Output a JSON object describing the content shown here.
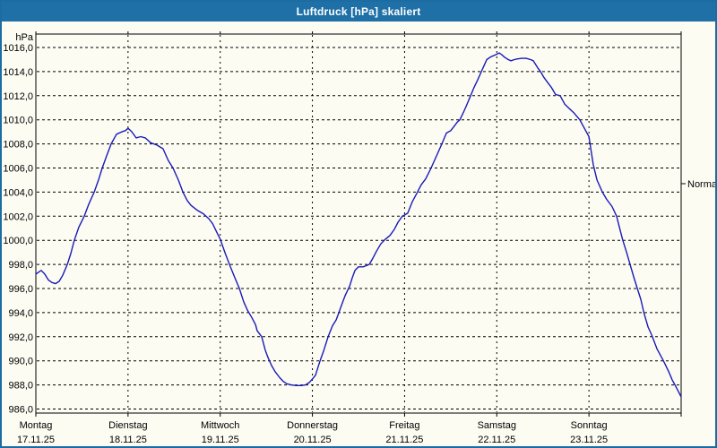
{
  "window": {
    "title": "Luftdruck [hPa] skaliert"
  },
  "chart_data": {
    "type": "line",
    "title": "Luftdruck [hPa] skaliert",
    "unit_label": "hPa",
    "ylim": [
      985.5,
      1017.1
    ],
    "yticks": [
      1016,
      1014,
      1012,
      1010,
      1008,
      1006,
      1004,
      1002,
      1000,
      998,
      996,
      994,
      992,
      990,
      988,
      986
    ],
    "ytick_decimal": "comma",
    "x_hours_range": [
      0,
      168
    ],
    "grid": "dashed",
    "x_categories": [
      {
        "day": "Montag",
        "date": "17.11.25"
      },
      {
        "day": "Dienstag",
        "date": "18.11.25"
      },
      {
        "day": "Mittwoch",
        "date": "19.11.25"
      },
      {
        "day": "Donnerstag",
        "date": "20.11.25"
      },
      {
        "day": "Freitag",
        "date": "21.11.25"
      },
      {
        "day": "Samstag",
        "date": "22.11.25"
      },
      {
        "day": "Sonntag",
        "date": "23.11.25"
      }
    ],
    "annotations": [
      {
        "label": "Normal",
        "value_hpa": 1004.7,
        "position": "right-edge"
      }
    ],
    "series": [
      {
        "name": "Luftdruck",
        "color": "#1a1ab8",
        "points_hours_hpa": [
          [
            0,
            997.2
          ],
          [
            0.9,
            997.4
          ],
          [
            1.4,
            997.5
          ],
          [
            2.3,
            997.2
          ],
          [
            3.3,
            996.7
          ],
          [
            4.2,
            996.5
          ],
          [
            5.1,
            996.4
          ],
          [
            6.1,
            996.6
          ],
          [
            7,
            997.1
          ],
          [
            8.2,
            998
          ],
          [
            9.1,
            998.9
          ],
          [
            10,
            1000
          ],
          [
            11.2,
            1001.1
          ],
          [
            12.6,
            1002
          ],
          [
            13.8,
            1003
          ],
          [
            15.2,
            1004
          ],
          [
            16.3,
            1005
          ],
          [
            17.3,
            1006
          ],
          [
            18.4,
            1007
          ],
          [
            19.6,
            1008
          ],
          [
            21,
            1008.8
          ],
          [
            22.4,
            1009
          ],
          [
            23.3,
            1009.1
          ],
          [
            24,
            1009.3
          ],
          [
            25,
            1009
          ],
          [
            26.1,
            1008.5
          ],
          [
            27.3,
            1008.6
          ],
          [
            28.5,
            1008.5
          ],
          [
            29.9,
            1008.1
          ],
          [
            31.5,
            1007.9
          ],
          [
            33.1,
            1007.6
          ],
          [
            34.5,
            1006.6
          ],
          [
            35.7,
            1006
          ],
          [
            37.1,
            1005
          ],
          [
            38.3,
            1004
          ],
          [
            39.4,
            1003.3
          ],
          [
            40.4,
            1002.9
          ],
          [
            42,
            1002.5
          ],
          [
            43.6,
            1002.2
          ],
          [
            45,
            1001.8
          ],
          [
            46,
            1001.4
          ],
          [
            46.9,
            1000.8
          ],
          [
            48,
            1000.1
          ],
          [
            49.2,
            999
          ],
          [
            50.4,
            998
          ],
          [
            51.8,
            996.9
          ],
          [
            53,
            996
          ],
          [
            54.1,
            994.9
          ],
          [
            55.1,
            994.2
          ],
          [
            56.2,
            993.6
          ],
          [
            57.2,
            993
          ],
          [
            57.6,
            992.5
          ],
          [
            58.8,
            992
          ],
          [
            59.7,
            990.9
          ],
          [
            60.4,
            990.3
          ],
          [
            61.4,
            989.6
          ],
          [
            62.3,
            989.1
          ],
          [
            63.5,
            988.6
          ],
          [
            64.4,
            988.3
          ],
          [
            65.3,
            988.1
          ],
          [
            66.5,
            988
          ],
          [
            67.7,
            987.95
          ],
          [
            69.1,
            987.95
          ],
          [
            70.2,
            988
          ],
          [
            71.2,
            988.2
          ],
          [
            72,
            988.5
          ],
          [
            72.8,
            988.8
          ],
          [
            74,
            990
          ],
          [
            74.9,
            990.8
          ],
          [
            76.1,
            992
          ],
          [
            77.2,
            992.9
          ],
          [
            78.2,
            993.4
          ],
          [
            78.9,
            994
          ],
          [
            79.8,
            994.8
          ],
          [
            80.5,
            995.4
          ],
          [
            81.7,
            996.2
          ],
          [
            82.4,
            996.9
          ],
          [
            83.1,
            997.5
          ],
          [
            84,
            997.8
          ],
          [
            85.2,
            997.8
          ],
          [
            86.1,
            997.9
          ],
          [
            86.8,
            998
          ],
          [
            87.7,
            998.5
          ],
          [
            88.7,
            999.1
          ],
          [
            89.8,
            999.7
          ],
          [
            91,
            1000.1
          ],
          [
            92.2,
            1000.4
          ],
          [
            93.3,
            1000.9
          ],
          [
            94.3,
            1001.5
          ],
          [
            95.4,
            1002
          ],
          [
            96,
            1002.1
          ],
          [
            96.8,
            1002.25
          ],
          [
            98,
            1003.2
          ],
          [
            99.2,
            1003.9
          ],
          [
            100.3,
            1004.6
          ],
          [
            101.5,
            1005.1
          ],
          [
            102.9,
            1006
          ],
          [
            104.3,
            1007
          ],
          [
            105.7,
            1008
          ],
          [
            106.9,
            1008.9
          ],
          [
            108,
            1009.1
          ],
          [
            109,
            1009.5
          ],
          [
            109.7,
            1009.8
          ],
          [
            110.4,
            1010
          ],
          [
            111.3,
            1010.6
          ],
          [
            112,
            1011.1
          ],
          [
            113.2,
            1012
          ],
          [
            114.1,
            1012.7
          ],
          [
            115,
            1013.3
          ],
          [
            116,
            1014
          ],
          [
            116.7,
            1014.5
          ],
          [
            117.4,
            1015
          ],
          [
            118.3,
            1015.2
          ],
          [
            119,
            1015.3
          ],
          [
            119.7,
            1015.4
          ],
          [
            120.6,
            1015.55
          ],
          [
            121.3,
            1015.4
          ],
          [
            122,
            1015.2
          ],
          [
            123,
            1015
          ],
          [
            123.7,
            1014.9
          ],
          [
            124.6,
            1015
          ],
          [
            125.3,
            1015.05
          ],
          [
            126.5,
            1015.1
          ],
          [
            127.6,
            1015.1
          ],
          [
            128.8,
            1015
          ],
          [
            129.5,
            1014.9
          ],
          [
            130.7,
            1014.3
          ],
          [
            131.4,
            1014
          ],
          [
            132.3,
            1013.5
          ],
          [
            133,
            1013.2
          ],
          [
            134.2,
            1012.7
          ],
          [
            135.3,
            1012.1
          ],
          [
            136.5,
            1012
          ],
          [
            137.7,
            1011.3
          ],
          [
            138.8,
            1010.95
          ],
          [
            140,
            1010.6
          ],
          [
            141.6,
            1010
          ],
          [
            142.8,
            1009.3
          ],
          [
            144,
            1008.6
          ],
          [
            145.1,
            1006.3
          ],
          [
            146.1,
            1005
          ],
          [
            147.5,
            1004
          ],
          [
            148.6,
            1003.4
          ],
          [
            150,
            1002.8
          ],
          [
            151.2,
            1002
          ],
          [
            152,
            1001
          ],
          [
            152.8,
            1000
          ],
          [
            153.8,
            999
          ],
          [
            154.7,
            998
          ],
          [
            155.6,
            997
          ],
          [
            156.6,
            996
          ],
          [
            157.5,
            995.1
          ],
          [
            158.3,
            994
          ],
          [
            159.4,
            992.8
          ],
          [
            160.4,
            992.1
          ],
          [
            161.7,
            991
          ],
          [
            162.9,
            990.3
          ],
          [
            163.7,
            989.8
          ],
          [
            164.9,
            989
          ],
          [
            165.7,
            988.4
          ],
          [
            166.4,
            988
          ],
          [
            167.2,
            987.5
          ],
          [
            168,
            987
          ]
        ]
      }
    ]
  }
}
